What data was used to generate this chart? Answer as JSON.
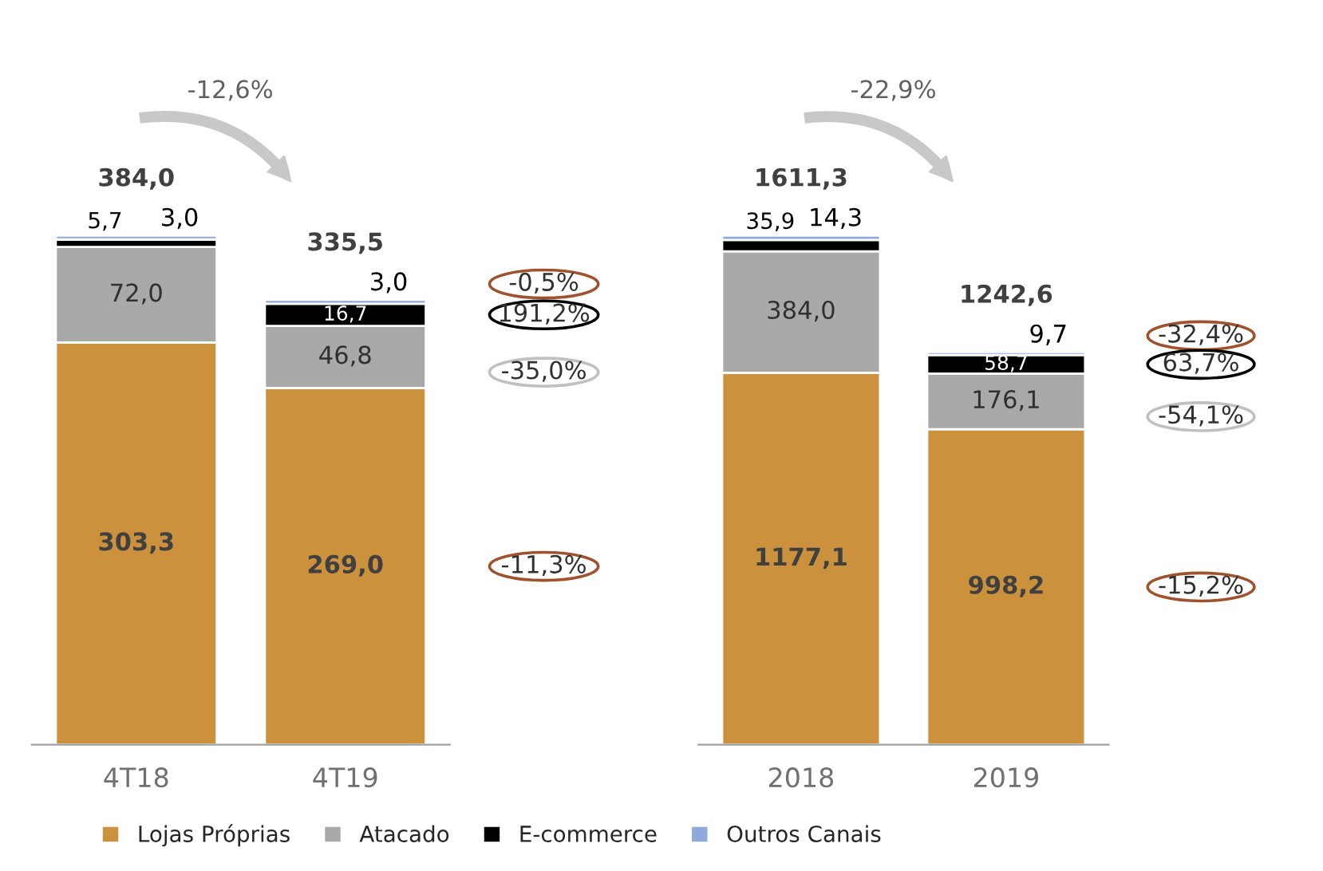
{
  "chart_data": [
    {
      "type": "bar",
      "stacked": true,
      "categories": [
        "4T18",
        "4T19"
      ],
      "legend": "bottom",
      "series": [
        {
          "name": "Lojas Próprias",
          "color": "#cc913c",
          "values": [
            303.3,
            269.0
          ],
          "value_labels": [
            "303,3",
            "269,0"
          ]
        },
        {
          "name": "Atacado",
          "color": "#a9a9a9",
          "values": [
            72.0,
            46.8
          ],
          "value_labels": [
            "72,0",
            "46,8"
          ]
        },
        {
          "name": "E-commerce",
          "color": "#000000",
          "values": [
            5.7,
            16.7
          ],
          "value_labels": [
            "5,7",
            "16,7"
          ]
        },
        {
          "name": "Outros Canais",
          "color": "#8eaadb",
          "values": [
            3.0,
            3.0
          ],
          "value_labels": [
            "3,0",
            "3,0"
          ]
        }
      ],
      "totals": [
        "384,0",
        "335,5"
      ],
      "annotations": [
        "-12,6%",
        "-0,5%",
        "191,2%",
        "-35,0%",
        "-11,3%"
      ]
    },
    {
      "type": "bar",
      "stacked": true,
      "categories": [
        "2018",
        "2019"
      ],
      "series": [
        {
          "color": "#cc913c",
          "values": [
            1177.1,
            998.2
          ],
          "value_labels": [
            "1177,1",
            "998,2"
          ]
        },
        {
          "color": "#a9a9a9",
          "values": [
            384.0,
            176.1
          ],
          "value_labels": [
            "384,0",
            "176,1"
          ]
        },
        {
          "color": "#000000",
          "values": [
            35.9,
            58.7
          ],
          "value_labels": [
            "35,9",
            "58,7"
          ]
        },
        {
          "color": "#8eaadb",
          "values": [
            14.3,
            9.7
          ],
          "value_labels": [
            "14,3",
            "9,7"
          ]
        }
      ],
      "totals": [
        "1611,3",
        "1242,6"
      ],
      "annotations": [
        "-22,9%",
        "-32,4%",
        "63,7%",
        "-54,1%",
        "-15,2%"
      ]
    }
  ]
}
